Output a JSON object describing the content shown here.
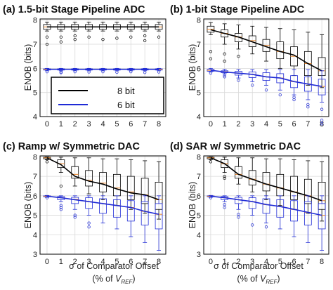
{
  "legend": [
    {
      "label": "8 bit",
      "color": "#000000"
    },
    {
      "label": "6 bit",
      "color": "#1f2bd6"
    }
  ],
  "xlabel_line1": "σ of Comparator Offset",
  "xlabel_line2_pre": "(% of ",
  "xlabel_line2_var": "V",
  "xlabel_line2_sub": "REF",
  "xlabel_line2_post": ")",
  "ylabel": "ENOB (bits)",
  "chart_data": [
    {
      "type": "box",
      "title": "(a) 1.5-bit Stage Pipeline ADC",
      "categories": [
        0,
        1,
        2,
        3,
        4,
        5,
        6,
        7,
        8
      ],
      "ylim": [
        4.0,
        8.05
      ],
      "yticks": [
        4,
        5,
        6,
        7,
        8
      ],
      "grid": true,
      "series": [
        {
          "name": "8 bit",
          "color": "#000000",
          "mean": [
            7.72,
            7.72,
            7.72,
            7.72,
            7.72,
            7.72,
            7.72,
            7.72,
            7.72
          ],
          "boxes": [
            {
              "lo": 7.55,
              "q1": 7.62,
              "med": 7.72,
              "q3": 7.82,
              "hi": 7.92,
              "out": [
                7.0,
                7.3
              ]
            },
            {
              "lo": 7.55,
              "q1": 7.62,
              "med": 7.72,
              "q3": 7.82,
              "hi": 7.92,
              "out": [
                7.1,
                7.3
              ]
            },
            {
              "lo": 7.55,
              "q1": 7.62,
              "med": 7.72,
              "q3": 7.82,
              "hi": 7.92,
              "out": [
                7.2,
                7.35
              ]
            },
            {
              "lo": 7.55,
              "q1": 7.62,
              "med": 7.72,
              "q3": 7.82,
              "hi": 7.92,
              "out": [
                7.3
              ]
            },
            {
              "lo": 7.55,
              "q1": 7.62,
              "med": 7.72,
              "q3": 7.82,
              "hi": 7.92,
              "out": [
                7.2
              ]
            },
            {
              "lo": 7.55,
              "q1": 7.62,
              "med": 7.72,
              "q3": 7.82,
              "hi": 7.92,
              "out": [
                7.25
              ]
            },
            {
              "lo": 7.55,
              "q1": 7.62,
              "med": 7.72,
              "q3": 7.82,
              "hi": 7.92,
              "out": [
                7.3
              ]
            },
            {
              "lo": 7.55,
              "q1": 7.62,
              "med": 7.72,
              "q3": 7.82,
              "hi": 7.92,
              "out": [
                7.15,
                7.35
              ]
            },
            {
              "lo": 7.55,
              "q1": 7.62,
              "med": 7.72,
              "q3": 7.82,
              "hi": 7.92,
              "out": [
                7.3
              ]
            }
          ]
        },
        {
          "name": "6 bit",
          "color": "#1f2bd6",
          "mean": [
            5.96,
            5.96,
            5.96,
            5.96,
            5.96,
            5.96,
            5.96,
            5.96,
            5.96
          ],
          "boxes": [
            {
              "lo": 5.9,
              "q1": 5.93,
              "med": 5.96,
              "q3": 5.98,
              "hi": 6.0,
              "out": [
                5.86
              ]
            },
            {
              "lo": 5.9,
              "q1": 5.93,
              "med": 5.96,
              "q3": 5.98,
              "hi": 6.0,
              "out": [
                5.85,
                5.82
              ]
            },
            {
              "lo": 5.9,
              "q1": 5.93,
              "med": 5.96,
              "q3": 5.98,
              "hi": 6.0,
              "out": [
                5.86
              ]
            },
            {
              "lo": 5.9,
              "q1": 5.93,
              "med": 5.96,
              "q3": 5.98,
              "hi": 6.0,
              "out": [
                5.85
              ]
            },
            {
              "lo": 5.9,
              "q1": 5.93,
              "med": 5.96,
              "q3": 5.98,
              "hi": 6.0,
              "out": [
                5.86
              ]
            },
            {
              "lo": 5.9,
              "q1": 5.93,
              "med": 5.96,
              "q3": 5.98,
              "hi": 6.0,
              "out": [
                5.84
              ]
            },
            {
              "lo": 5.9,
              "q1": 5.93,
              "med": 5.96,
              "q3": 5.98,
              "hi": 6.0,
              "out": [
                5.86
              ]
            },
            {
              "lo": 5.9,
              "q1": 5.93,
              "med": 5.96,
              "q3": 5.98,
              "hi": 6.0,
              "out": [
                5.83
              ]
            },
            {
              "lo": 5.9,
              "q1": 5.93,
              "med": 5.96,
              "q3": 5.98,
              "hi": 6.0,
              "out": [
                5.85
              ]
            }
          ]
        }
      ]
    },
    {
      "type": "box",
      "title": "(b) 1-bit Stage Pipeline ADC",
      "categories": [
        0,
        1,
        2,
        3,
        4,
        5,
        6,
        7,
        8
      ],
      "ylim": [
        4.0,
        8.05
      ],
      "yticks": [
        4,
        5,
        6,
        7,
        8
      ],
      "grid": true,
      "series": [
        {
          "name": "8 bit",
          "color": "#000000",
          "mean": [
            7.6,
            7.45,
            7.3,
            7.1,
            6.9,
            6.7,
            6.55,
            6.2,
            5.9
          ],
          "boxes": [
            {
              "lo": 7.4,
              "q1": 7.5,
              "med": 7.62,
              "q3": 7.75,
              "hi": 7.9,
              "out": [
                6.4,
                6.7
              ]
            },
            {
              "lo": 7.0,
              "q1": 7.3,
              "med": 7.45,
              "q3": 7.6,
              "hi": 7.85,
              "out": [
                6.3,
                6.6
              ]
            },
            {
              "lo": 6.8,
              "q1": 7.1,
              "med": 7.3,
              "q3": 7.45,
              "hi": 7.8,
              "out": [
                6.5
              ]
            },
            {
              "lo": 6.6,
              "q1": 6.9,
              "med": 7.15,
              "q3": 7.35,
              "hi": 7.75,
              "out": []
            },
            {
              "lo": 6.3,
              "q1": 6.7,
              "med": 6.95,
              "q3": 7.2,
              "hi": 7.7,
              "out": []
            },
            {
              "lo": 6.0,
              "q1": 6.4,
              "med": 6.7,
              "q3": 7.1,
              "hi": 7.65,
              "out": []
            },
            {
              "lo": 5.7,
              "q1": 6.1,
              "med": 6.5,
              "q3": 6.9,
              "hi": 7.6,
              "out": []
            },
            {
              "lo": 5.3,
              "q1": 5.7,
              "med": 6.2,
              "q3": 6.7,
              "hi": 7.5,
              "out": []
            },
            {
              "lo": 5.2,
              "q1": 5.7,
              "med": 5.9,
              "q3": 6.45,
              "hi": 7.4,
              "out": []
            }
          ]
        },
        {
          "name": "6 bit",
          "color": "#1f2bd6",
          "mean": [
            5.92,
            5.85,
            5.8,
            5.75,
            5.65,
            5.6,
            5.45,
            5.35,
            5.25
          ],
          "boxes": [
            {
              "lo": 5.85,
              "q1": 5.88,
              "med": 5.92,
              "q3": 5.96,
              "hi": 6.0,
              "out": [
                5.8
              ]
            },
            {
              "lo": 5.78,
              "q1": 5.82,
              "med": 5.86,
              "q3": 5.9,
              "hi": 5.96,
              "out": [
                5.7,
                5.65
              ]
            },
            {
              "lo": 5.6,
              "q1": 5.72,
              "med": 5.8,
              "q3": 5.88,
              "hi": 5.95,
              "out": [
                5.5
              ]
            },
            {
              "lo": 5.45,
              "q1": 5.62,
              "med": 5.75,
              "q3": 5.85,
              "hi": 5.95,
              "out": [
                5.3
              ]
            },
            {
              "lo": 5.3,
              "q1": 5.5,
              "med": 5.65,
              "q3": 5.82,
              "hi": 5.95,
              "out": [
                5.1
              ]
            },
            {
              "lo": 5.1,
              "q1": 5.4,
              "med": 5.6,
              "q3": 5.78,
              "hi": 5.95,
              "out": [
                4.9
              ]
            },
            {
              "lo": 4.9,
              "q1": 5.2,
              "med": 5.45,
              "q3": 5.7,
              "hi": 5.95,
              "out": [
                4.7,
                4.8
              ]
            },
            {
              "lo": 4.7,
              "q1": 5.05,
              "med": 5.35,
              "q3": 5.65,
              "hi": 5.95,
              "out": [
                4.4,
                4.5
              ]
            },
            {
              "lo": 4.6,
              "q1": 4.9,
              "med": 5.25,
              "q3": 5.55,
              "hi": 5.9,
              "out": [
                3.7,
                3.85,
                4.3
              ]
            }
          ]
        }
      ]
    },
    {
      "type": "box",
      "title": "(c) Ramp w/ Symmetric DAC",
      "categories": [
        0,
        1,
        2,
        3,
        4,
        5,
        6,
        7,
        8
      ],
      "ylim": [
        3.0,
        8.05
      ],
      "yticks": [
        3,
        4,
        5,
        6,
        7,
        8
      ],
      "grid": true,
      "series": [
        {
          "name": "8 bit",
          "color": "#000000",
          "mean": [
            7.95,
            7.6,
            7.0,
            6.75,
            6.6,
            6.35,
            6.15,
            6.05,
            5.8
          ],
          "boxes": [
            {
              "lo": 7.85,
              "q1": 7.9,
              "med": 7.95,
              "q3": 7.98,
              "hi": 8.0,
              "out": [
                7.75
              ]
            },
            {
              "lo": 7.2,
              "q1": 7.45,
              "med": 7.65,
              "q3": 7.85,
              "hi": 7.98,
              "out": [
                6.5
              ]
            },
            {
              "lo": 6.5,
              "q1": 6.9,
              "med": 7.1,
              "q3": 7.5,
              "hi": 7.95,
              "out": []
            },
            {
              "lo": 6.1,
              "q1": 6.5,
              "med": 6.8,
              "q3": 7.3,
              "hi": 7.95,
              "out": []
            },
            {
              "lo": 5.8,
              "q1": 6.2,
              "med": 6.65,
              "q3": 7.2,
              "hi": 7.9,
              "out": []
            },
            {
              "lo": 5.5,
              "q1": 6.0,
              "med": 6.4,
              "q3": 7.1,
              "hi": 7.9,
              "out": []
            },
            {
              "lo": 5.3,
              "q1": 5.8,
              "med": 6.2,
              "q3": 7.0,
              "hi": 7.85,
              "out": []
            },
            {
              "lo": 5.1,
              "q1": 5.6,
              "med": 6.05,
              "q3": 6.9,
              "hi": 7.8,
              "out": []
            },
            {
              "lo": 4.8,
              "q1": 5.3,
              "med": 5.8,
              "q3": 6.7,
              "hi": 7.75,
              "out": []
            }
          ]
        },
        {
          "name": "6 bit",
          "color": "#1f2bd6",
          "mean": [
            5.98,
            5.9,
            5.8,
            5.7,
            5.6,
            5.5,
            5.4,
            5.2,
            5.05
          ],
          "boxes": [
            {
              "lo": 5.92,
              "q1": 5.95,
              "med": 5.98,
              "q3": 6.0,
              "hi": 6.02,
              "out": [
                5.9
              ]
            },
            {
              "lo": 5.7,
              "q1": 5.8,
              "med": 5.9,
              "q3": 5.96,
              "hi": 6.0,
              "out": [
                5.3,
                5.4,
                5.5
              ]
            },
            {
              "lo": 5.3,
              "q1": 5.6,
              "med": 5.82,
              "q3": 5.92,
              "hi": 6.0,
              "out": [
                4.9,
                5.0
              ]
            },
            {
              "lo": 5.0,
              "q1": 5.35,
              "med": 5.7,
              "q3": 5.9,
              "hi": 6.0,
              "out": [
                4.4,
                4.6
              ]
            },
            {
              "lo": 4.6,
              "q1": 5.1,
              "med": 5.6,
              "q3": 5.85,
              "hi": 6.0,
              "out": []
            },
            {
              "lo": 4.3,
              "q1": 4.9,
              "med": 5.5,
              "q3": 5.8,
              "hi": 6.0,
              "out": []
            },
            {
              "lo": 3.9,
              "q1": 4.7,
              "med": 5.4,
              "q3": 5.75,
              "hi": 6.0,
              "out": []
            },
            {
              "lo": 3.6,
              "q1": 4.5,
              "med": 5.2,
              "q3": 5.7,
              "hi": 6.0,
              "out": []
            },
            {
              "lo": 3.2,
              "q1": 4.3,
              "med": 5.05,
              "q3": 5.6,
              "hi": 6.0,
              "out": []
            }
          ]
        }
      ]
    },
    {
      "type": "box",
      "title": "(d) SAR w/ Symmetric DAC",
      "categories": [
        0,
        1,
        2,
        3,
        4,
        5,
        6,
        7,
        8
      ],
      "ylim": [
        3.0,
        8.05
      ],
      "yticks": [
        3,
        4,
        5,
        6,
        7,
        8
      ],
      "grid": true,
      "series": [
        {
          "name": "8 bit",
          "color": "#000000",
          "mean": [
            7.95,
            7.65,
            7.1,
            6.85,
            6.6,
            6.4,
            6.2,
            6.0,
            5.75
          ],
          "boxes": [
            {
              "lo": 7.85,
              "q1": 7.9,
              "med": 7.95,
              "q3": 7.98,
              "hi": 8.0,
              "out": [
                7.75
              ]
            },
            {
              "lo": 7.2,
              "q1": 7.45,
              "med": 7.65,
              "q3": 7.85,
              "hi": 7.98,
              "out": [
                6.9,
                7.0
              ]
            },
            {
              "lo": 6.6,
              "q1": 6.9,
              "med": 7.1,
              "q3": 7.5,
              "hi": 7.95,
              "out": []
            },
            {
              "lo": 6.2,
              "q1": 6.55,
              "med": 6.85,
              "q3": 7.3,
              "hi": 7.95,
              "out": []
            },
            {
              "lo": 5.8,
              "q1": 6.25,
              "med": 6.6,
              "q3": 7.2,
              "hi": 7.9,
              "out": []
            },
            {
              "lo": 5.5,
              "q1": 6.0,
              "med": 6.4,
              "q3": 7.1,
              "hi": 7.9,
              "out": []
            },
            {
              "lo": 5.3,
              "q1": 5.8,
              "med": 6.2,
              "q3": 7.0,
              "hi": 7.85,
              "out": []
            },
            {
              "lo": 5.1,
              "q1": 5.6,
              "med": 6.0,
              "q3": 6.85,
              "hi": 7.8,
              "out": []
            },
            {
              "lo": 4.7,
              "q1": 5.3,
              "med": 5.75,
              "q3": 6.7,
              "hi": 7.75,
              "out": []
            }
          ]
        },
        {
          "name": "6 bit",
          "color": "#1f2bd6",
          "mean": [
            5.98,
            5.9,
            5.8,
            5.7,
            5.55,
            5.45,
            5.3,
            5.15,
            5.0
          ],
          "boxes": [
            {
              "lo": 5.92,
              "q1": 5.95,
              "med": 5.98,
              "q3": 6.0,
              "hi": 6.02,
              "out": [
                5.9
              ]
            },
            {
              "lo": 5.7,
              "q1": 5.8,
              "med": 5.9,
              "q3": 5.96,
              "hi": 6.0,
              "out": [
                5.4,
                5.55
              ]
            },
            {
              "lo": 5.3,
              "q1": 5.6,
              "med": 5.8,
              "q3": 5.92,
              "hi": 6.0,
              "out": [
                4.9,
                5.05
              ]
            },
            {
              "lo": 5.0,
              "q1": 5.35,
              "med": 5.7,
              "q3": 5.9,
              "hi": 6.0,
              "out": [
                4.5
              ]
            },
            {
              "lo": 4.6,
              "q1": 5.1,
              "med": 5.55,
              "q3": 5.85,
              "hi": 6.0,
              "out": [
                4.4
              ]
            },
            {
              "lo": 4.3,
              "q1": 4.9,
              "med": 5.45,
              "q3": 5.8,
              "hi": 6.0,
              "out": []
            },
            {
              "lo": 3.9,
              "q1": 4.7,
              "med": 5.3,
              "q3": 5.75,
              "hi": 6.0,
              "out": []
            },
            {
              "lo": 3.6,
              "q1": 4.5,
              "med": 5.15,
              "q3": 5.7,
              "hi": 6.0,
              "out": []
            },
            {
              "lo": 3.2,
              "q1": 4.3,
              "med": 5.0,
              "q3": 5.6,
              "hi": 6.0,
              "out": []
            }
          ]
        }
      ]
    }
  ]
}
